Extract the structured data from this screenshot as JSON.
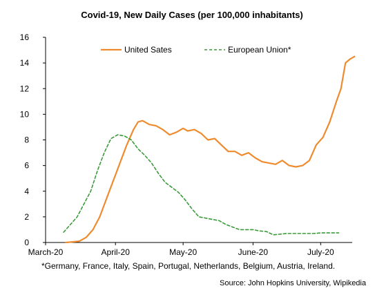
{
  "chart_data": {
    "type": "line",
    "title": "Covid-19, New Daily Cases (per 100,000 inhabitants)",
    "xlabel": "",
    "ylabel": "",
    "ylim": [
      0,
      16
    ],
    "yticks": [
      0,
      2,
      4,
      6,
      8,
      10,
      12,
      14,
      16
    ],
    "xlim": [
      "2020-03-01",
      "2020-07-15"
    ],
    "xticks": [
      "2020-03-01",
      "2020-04-01",
      "2020-05-01",
      "2020-06-01",
      "2020-07-01"
    ],
    "xtick_labels": [
      "March-20",
      "April-20",
      "May-20",
      "June-20",
      "July-20"
    ],
    "grid": false,
    "legend_position": "top",
    "series": [
      {
        "name": "United Sates",
        "color": "#ED8B2E",
        "style": "solid",
        "points": [
          [
            "2020-03-10",
            0.0
          ],
          [
            "2020-03-13",
            0.05
          ],
          [
            "2020-03-16",
            0.1
          ],
          [
            "2020-03-19",
            0.4
          ],
          [
            "2020-03-22",
            1.0
          ],
          [
            "2020-03-25",
            2.0
          ],
          [
            "2020-03-28",
            3.4
          ],
          [
            "2020-03-31",
            4.8
          ],
          [
            "2020-04-03",
            6.2
          ],
          [
            "2020-04-06",
            7.6
          ],
          [
            "2020-04-09",
            8.8
          ],
          [
            "2020-04-11",
            9.4
          ],
          [
            "2020-04-13",
            9.5
          ],
          [
            "2020-04-16",
            9.2
          ],
          [
            "2020-04-19",
            9.1
          ],
          [
            "2020-04-22",
            8.8
          ],
          [
            "2020-04-25",
            8.4
          ],
          [
            "2020-04-28",
            8.6
          ],
          [
            "2020-05-01",
            8.9
          ],
          [
            "2020-05-03",
            8.7
          ],
          [
            "2020-05-06",
            8.8
          ],
          [
            "2020-05-09",
            8.5
          ],
          [
            "2020-05-12",
            8.0
          ],
          [
            "2020-05-15",
            8.1
          ],
          [
            "2020-05-18",
            7.6
          ],
          [
            "2020-05-21",
            7.1
          ],
          [
            "2020-05-24",
            7.1
          ],
          [
            "2020-05-27",
            6.8
          ],
          [
            "2020-05-30",
            7.0
          ],
          [
            "2020-06-02",
            6.6
          ],
          [
            "2020-06-05",
            6.3
          ],
          [
            "2020-06-08",
            6.2
          ],
          [
            "2020-06-11",
            6.1
          ],
          [
            "2020-06-14",
            6.4
          ],
          [
            "2020-06-17",
            6.0
          ],
          [
            "2020-06-20",
            5.9
          ],
          [
            "2020-06-23",
            6.0
          ],
          [
            "2020-06-26",
            6.4
          ],
          [
            "2020-06-29",
            7.6
          ],
          [
            "2020-07-02",
            8.2
          ],
          [
            "2020-07-05",
            9.4
          ],
          [
            "2020-07-08",
            11.0
          ],
          [
            "2020-07-10",
            12.0
          ],
          [
            "2020-07-12",
            14.0
          ],
          [
            "2020-07-14",
            14.3
          ],
          [
            "2020-07-16",
            14.5
          ]
        ]
      },
      {
        "name": "European Union*",
        "color": "#3A9A3A",
        "style": "dashed",
        "points": [
          [
            "2020-03-09",
            0.8
          ],
          [
            "2020-03-12",
            1.4
          ],
          [
            "2020-03-15",
            2.0
          ],
          [
            "2020-03-18",
            3.0
          ],
          [
            "2020-03-21",
            4.0
          ],
          [
            "2020-03-24",
            5.6
          ],
          [
            "2020-03-27",
            7.0
          ],
          [
            "2020-03-30",
            8.1
          ],
          [
            "2020-04-02",
            8.4
          ],
          [
            "2020-04-05",
            8.3
          ],
          [
            "2020-04-08",
            8.0
          ],
          [
            "2020-04-11",
            7.3
          ],
          [
            "2020-04-14",
            6.8
          ],
          [
            "2020-04-17",
            6.2
          ],
          [
            "2020-04-20",
            5.4
          ],
          [
            "2020-04-23",
            4.7
          ],
          [
            "2020-04-26",
            4.3
          ],
          [
            "2020-04-29",
            3.9
          ],
          [
            "2020-05-02",
            3.3
          ],
          [
            "2020-05-05",
            2.6
          ],
          [
            "2020-05-08",
            2.0
          ],
          [
            "2020-05-11",
            1.9
          ],
          [
            "2020-05-14",
            1.8
          ],
          [
            "2020-05-17",
            1.7
          ],
          [
            "2020-05-20",
            1.4
          ],
          [
            "2020-05-23",
            1.2
          ],
          [
            "2020-05-26",
            1.0
          ],
          [
            "2020-05-29",
            1.0
          ],
          [
            "2020-06-01",
            1.0
          ],
          [
            "2020-06-04",
            0.9
          ],
          [
            "2020-06-07",
            0.85
          ],
          [
            "2020-06-10",
            0.6
          ],
          [
            "2020-06-13",
            0.65
          ],
          [
            "2020-06-16",
            0.7
          ],
          [
            "2020-06-19",
            0.7
          ],
          [
            "2020-06-22",
            0.7
          ],
          [
            "2020-06-25",
            0.7
          ],
          [
            "2020-06-28",
            0.7
          ],
          [
            "2020-07-01",
            0.75
          ],
          [
            "2020-07-04",
            0.75
          ],
          [
            "2020-07-07",
            0.75
          ],
          [
            "2020-07-09",
            0.75
          ]
        ]
      }
    ]
  },
  "footnote": "*Germany, France, Italy, Spain, Portugal, Netherlands, Belgium, Austria, Ireland.",
  "source": "Source: John Hopkins University, Wipikedia"
}
